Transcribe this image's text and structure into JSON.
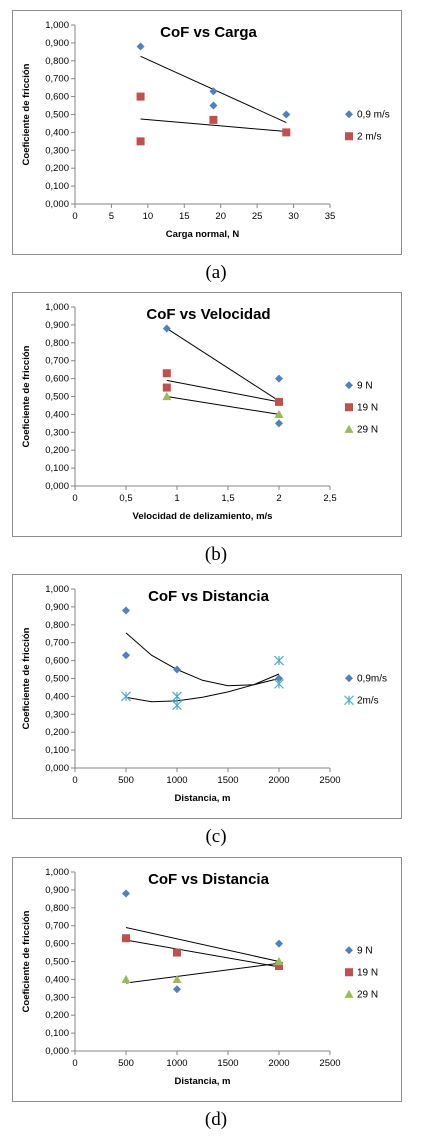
{
  "chart_data": [
    {
      "type": "scatter",
      "title": "CoF vs Carga",
      "xlabel": "Carga normal, N",
      "ylabel": "Coeficiente de fricción",
      "xlim": [
        0,
        35
      ],
      "ylim": [
        0,
        1
      ],
      "xticks": [
        "0",
        "5",
        "10",
        "15",
        "20",
        "25",
        "30",
        "35"
      ],
      "yticks": [
        "0,000",
        "0,100",
        "0,200",
        "0,300",
        "0,400",
        "0,500",
        "0,600",
        "0,700",
        "0,800",
        "0,900",
        "1,000"
      ],
      "legend_position": "right",
      "grid": false,
      "caption": "(a)",
      "series": [
        {
          "name": "0,9 m/s",
          "marker": "diamond",
          "color": "#4f81bd",
          "points": [
            [
              9,
              0.88
            ],
            [
              19,
              0.63
            ],
            [
              19,
              0.55
            ],
            [
              29,
              0.5
            ]
          ],
          "trend": {
            "kind": "linear",
            "from": [
              9,
              0.825
            ],
            "to": [
              29,
              0.455
            ]
          }
        },
        {
          "name": "2 m/s",
          "marker": "square",
          "color": "#c0504d",
          "points": [
            [
              9,
              0.6
            ],
            [
              9,
              0.35
            ],
            [
              19,
              0.47
            ],
            [
              29,
              0.4
            ]
          ],
          "trend": {
            "kind": "linear",
            "from": [
              9,
              0.475
            ],
            "to": [
              29,
              0.405
            ]
          }
        }
      ]
    },
    {
      "type": "scatter",
      "title": "CoF vs Velocidad",
      "xlabel": "Velocidad de delizamiento, m/s",
      "ylabel": "Coeficiente de fricción",
      "xlim": [
        0,
        2.5
      ],
      "ylim": [
        0,
        1
      ],
      "xticks": [
        "0",
        "0,5",
        "1",
        "1,5",
        "2",
        "2,5"
      ],
      "yticks": [
        "0,000",
        "0,100",
        "0,200",
        "0,300",
        "0,400",
        "0,500",
        "0,600",
        "0,700",
        "0,800",
        "0,900",
        "1,000"
      ],
      "legend_position": "right",
      "grid": false,
      "caption": "(b)",
      "series": [
        {
          "name": "9 N",
          "marker": "diamond",
          "color": "#4f81bd",
          "points": [
            [
              0.9,
              0.88
            ],
            [
              2,
              0.6
            ],
            [
              2,
              0.35
            ]
          ],
          "trend": {
            "kind": "linear",
            "from": [
              0.9,
              0.88
            ],
            "to": [
              2,
              0.475
            ]
          }
        },
        {
          "name": "19 N",
          "marker": "square",
          "color": "#c0504d",
          "points": [
            [
              0.9,
              0.63
            ],
            [
              0.9,
              0.55
            ],
            [
              2,
              0.47
            ]
          ],
          "trend": {
            "kind": "linear",
            "from": [
              0.9,
              0.59
            ],
            "to": [
              2,
              0.47
            ]
          }
        },
        {
          "name": "29 N",
          "marker": "triangle",
          "color": "#9bbb59",
          "points": [
            [
              0.9,
              0.5
            ],
            [
              2,
              0.4
            ]
          ],
          "trend": {
            "kind": "linear",
            "from": [
              0.9,
              0.5
            ],
            "to": [
              2,
              0.4
            ]
          }
        }
      ]
    },
    {
      "type": "scatter",
      "title": "CoF vs Distancia",
      "xlabel": "Distancia, m",
      "ylabel": "Coeficiente de fricción",
      "xlim": [
        0,
        2500
      ],
      "ylim": [
        0,
        1
      ],
      "xticks": [
        "0",
        "500",
        "1000",
        "1500",
        "2000",
        "2500"
      ],
      "yticks": [
        "0,000",
        "0,100",
        "0,200",
        "0,300",
        "0,400",
        "0,500",
        "0,600",
        "0,700",
        "0,800",
        "0,900",
        "1,000"
      ],
      "legend_position": "right",
      "grid": false,
      "caption": "(c)",
      "series": [
        {
          "name": "0,9m/s",
          "marker": "diamond",
          "color": "#4f81bd",
          "points": [
            [
              500,
              0.88
            ],
            [
              500,
              0.63
            ],
            [
              1000,
              0.55
            ],
            [
              2000,
              0.5
            ]
          ],
          "trend": {
            "kind": "poly",
            "points": [
              [
                500,
                0.755
              ],
              [
                750,
                0.63
              ],
              [
                1000,
                0.55
              ],
              [
                1250,
                0.49
              ],
              [
                1500,
                0.46
              ],
              [
                1750,
                0.465
              ],
              [
                2000,
                0.5
              ]
            ]
          }
        },
        {
          "name": "2m/s",
          "marker": "star",
          "color": "#4bacc6",
          "points": [
            [
              500,
              0.4
            ],
            [
              1000,
              0.4
            ],
            [
              1000,
              0.35
            ],
            [
              2000,
              0.6
            ],
            [
              2000,
              0.47
            ]
          ],
          "trend": {
            "kind": "poly",
            "points": [
              [
                500,
                0.395
              ],
              [
                750,
                0.37
              ],
              [
                1000,
                0.375
              ],
              [
                1250,
                0.395
              ],
              [
                1500,
                0.425
              ],
              [
                1750,
                0.465
              ],
              [
                2000,
                0.525
              ]
            ]
          }
        }
      ]
    },
    {
      "type": "scatter",
      "title": "CoF vs Distancia",
      "xlabel": "Distancia, m",
      "ylabel": "Coeficiente de fricción",
      "xlim": [
        0,
        2500
      ],
      "ylim": [
        0,
        1
      ],
      "xticks": [
        "0",
        "500",
        "1000",
        "1500",
        "2000",
        "2500"
      ],
      "yticks": [
        "0,000",
        "0,100",
        "0,200",
        "0,300",
        "0,400",
        "0,500",
        "0,600",
        "0,700",
        "0,800",
        "0,900",
        "1,000"
      ],
      "legend_position": "right",
      "grid": false,
      "caption": "(d)",
      "series": [
        {
          "name": "9 N",
          "marker": "diamond",
          "color": "#4f81bd",
          "points": [
            [
              500,
              0.88
            ],
            [
              1000,
              0.345
            ],
            [
              2000,
              0.6
            ]
          ],
          "trend": {
            "kind": "linear",
            "from": [
              500,
              0.69
            ],
            "to": [
              2000,
              0.5
            ]
          }
        },
        {
          "name": "19 N",
          "marker": "square",
          "color": "#c0504d",
          "points": [
            [
              500,
              0.63
            ],
            [
              1000,
              0.55
            ],
            [
              2000,
              0.475
            ]
          ],
          "trend": {
            "kind": "linear",
            "from": [
              500,
              0.62
            ],
            "to": [
              2000,
              0.47
            ]
          }
        },
        {
          "name": "29 N",
          "marker": "triangle",
          "color": "#9bbb59",
          "points": [
            [
              500,
              0.4
            ],
            [
              1000,
              0.4
            ],
            [
              2000,
              0.5
            ]
          ],
          "trend": {
            "kind": "linear",
            "from": [
              500,
              0.38
            ],
            "to": [
              2000,
              0.49
            ]
          }
        }
      ]
    }
  ]
}
